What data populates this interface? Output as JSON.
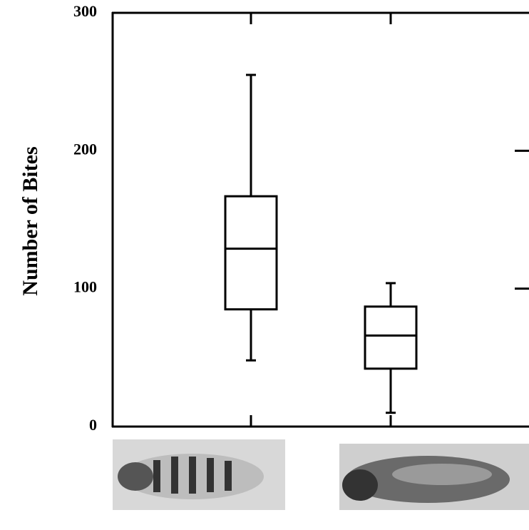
{
  "chart_data": {
    "type": "box",
    "ylabel": "Number of Bites",
    "categories": [
      null,
      null
    ],
    "boxes": [
      {
        "whislo": 48,
        "q1": 85,
        "med": 129,
        "q3": 167,
        "whishi": 255
      },
      {
        "whislo": 10,
        "q1": 42,
        "med": 66,
        "q3": 87,
        "whishi": 104
      }
    ],
    "ylim": [
      0,
      300
    ],
    "yticks": [
      0,
      100,
      200,
      300
    ],
    "color": "#000000"
  }
}
